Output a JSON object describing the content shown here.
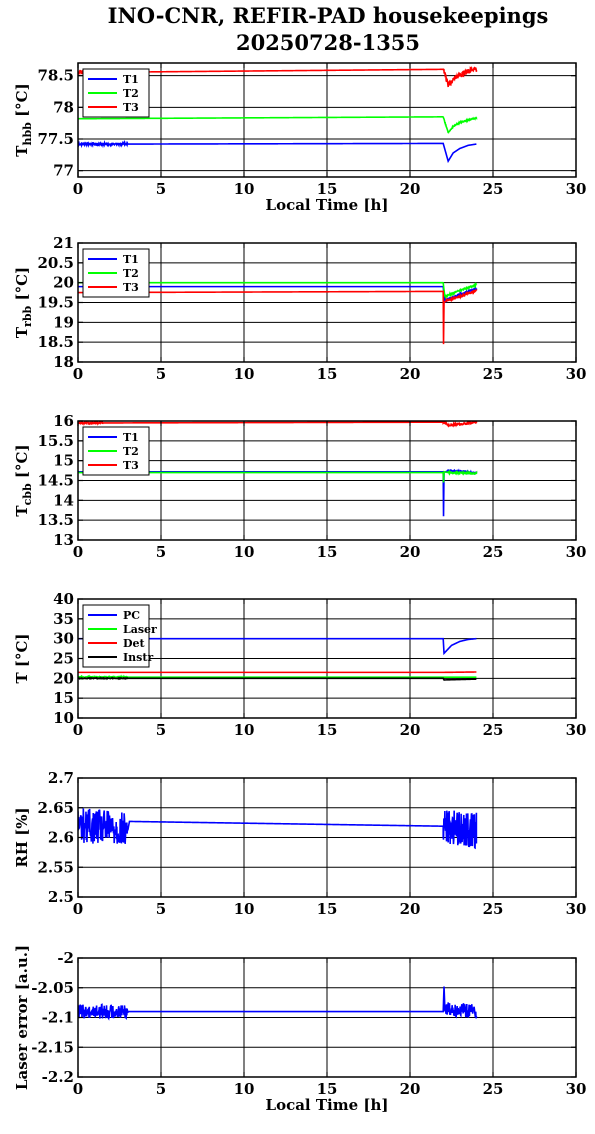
{
  "title_line1": "INO-CNR, REFIR-PAD housekeepings",
  "title_line2": "20250728-1355",
  "colors": {
    "blue": "#0000ff",
    "green": "#00ff00",
    "red": "#ff0000",
    "black": "#000000"
  },
  "chart_data": [
    {
      "type": "line",
      "ylabel_main": "T",
      "ylabel_sub": "hbb",
      "ylabel_unit": "[°C]",
      "xlabel": "Local Time [h]",
      "xlim": [
        0,
        30
      ],
      "ylim": [
        76.9,
        78.7
      ],
      "xticks": [
        0,
        5,
        10,
        15,
        20,
        25,
        30
      ],
      "yticks": [
        77,
        77.5,
        78,
        78.5
      ],
      "ytick_labels": [
        "77",
        "77.5",
        "78",
        "78.5"
      ],
      "grid": true,
      "legend": "top-left",
      "series": [
        {
          "name": "T1",
          "color": "blue",
          "x": [
            0,
            3,
            22,
            22.3,
            22.6,
            23,
            23.5,
            24
          ],
          "y": [
            77.42,
            77.42,
            77.43,
            77.15,
            77.28,
            77.35,
            77.4,
            77.42
          ],
          "noise": 0.02,
          "noise_ranges": [
            [
              0,
              3
            ]
          ]
        },
        {
          "name": "T2",
          "color": "green",
          "x": [
            0,
            22,
            22.3,
            22.6,
            23,
            23.5,
            24
          ],
          "y": [
            77.82,
            77.85,
            77.6,
            77.7,
            77.76,
            77.8,
            77.83
          ],
          "noise": 0.01,
          "noise_ranges": [
            [
              22,
              24
            ]
          ]
        },
        {
          "name": "T3",
          "color": "red",
          "x": [
            0,
            22,
            22.3,
            22.6,
            23,
            23.5,
            24
          ],
          "y": [
            78.55,
            78.6,
            78.35,
            78.45,
            78.5,
            78.57,
            78.6
          ],
          "noise": 0.04,
          "noise_ranges": [
            [
              22,
              24
            ],
            [
              0,
              0.3
            ]
          ]
        }
      ]
    },
    {
      "type": "line",
      "ylabel_main": "T",
      "ylabel_sub": "rbb",
      "ylabel_unit": "[°C]",
      "xlabel": "",
      "xlim": [
        0,
        30
      ],
      "ylim": [
        18,
        21
      ],
      "xticks": [
        0,
        5,
        10,
        15,
        20,
        25,
        30
      ],
      "yticks": [
        18,
        18.5,
        19,
        19.5,
        20,
        20.5,
        21
      ],
      "ytick_labels": [
        "18",
        "18.5",
        "19",
        "19.5",
        "20",
        "20.5",
        "21"
      ],
      "grid": true,
      "legend": "top-left",
      "series": [
        {
          "name": "T1",
          "color": "blue",
          "x": [
            0,
            22,
            22.1,
            23,
            24
          ],
          "y": [
            19.9,
            19.9,
            19.55,
            19.7,
            19.85
          ],
          "noise": 0.02,
          "noise_ranges": [
            [
              22,
              24
            ]
          ]
        },
        {
          "name": "T2",
          "color": "green",
          "x": [
            0,
            22,
            22.1,
            23,
            24
          ],
          "y": [
            20.0,
            20.0,
            19.65,
            19.8,
            19.95
          ],
          "noise": 0.02,
          "noise_ranges": [
            [
              22,
              24
            ]
          ]
        },
        {
          "name": "T3",
          "color": "red",
          "x": [
            0,
            22,
            22.02,
            22.05,
            22.2,
            23,
            24
          ],
          "y": [
            19.75,
            19.78,
            18.45,
            19.5,
            19.55,
            19.65,
            19.8
          ],
          "noise": 0.02,
          "noise_ranges": [
            [
              22.2,
              24
            ]
          ]
        }
      ]
    },
    {
      "type": "line",
      "ylabel_main": "T",
      "ylabel_sub": "cbb",
      "ylabel_unit": "[°C]",
      "xlabel": "",
      "xlim": [
        0,
        30
      ],
      "ylim": [
        13,
        16
      ],
      "xticks": [
        0,
        5,
        10,
        15,
        20,
        25,
        30
      ],
      "yticks": [
        13,
        13.5,
        14,
        14.5,
        15,
        15.5,
        16
      ],
      "ytick_labels": [
        "13",
        "13.5",
        "14",
        "14.5",
        "15",
        "15.5",
        "16"
      ],
      "grid": true,
      "legend": "top-left",
      "series": [
        {
          "name": "T1",
          "color": "blue",
          "x": [
            0,
            12,
            22,
            22.02,
            22.05,
            22.3,
            24
          ],
          "y": [
            14.72,
            14.72,
            14.72,
            13.6,
            14.7,
            14.75,
            14.7
          ],
          "noise": 0.02,
          "noise_ranges": [
            [
              22.3,
              24
            ]
          ]
        },
        {
          "name": "T2",
          "color": "green",
          "x": [
            0,
            22,
            22.02,
            22.05,
            22.3,
            24
          ],
          "y": [
            14.7,
            14.7,
            14.45,
            14.72,
            14.7,
            14.68
          ],
          "noise": 0.02,
          "noise_ranges": [
            [
              22.3,
              24
            ]
          ]
        },
        {
          "name": "T3",
          "color": "red",
          "x": [
            0,
            22,
            22.3,
            23,
            24
          ],
          "y": [
            15.95,
            15.97,
            15.9,
            15.92,
            15.97
          ],
          "noise": 0.025,
          "noise_ranges": [
            [
              0,
              1.5
            ],
            [
              22,
              24
            ]
          ]
        }
      ]
    },
    {
      "type": "line",
      "ylabel_main": "T",
      "ylabel_sub": "",
      "ylabel_unit": "[°C]",
      "xlabel": "",
      "xlim": [
        0,
        30
      ],
      "ylim": [
        10,
        40
      ],
      "xticks": [
        0,
        5,
        10,
        15,
        20,
        25,
        30
      ],
      "yticks": [
        10,
        15,
        20,
        25,
        30,
        35,
        40
      ],
      "ytick_labels": [
        "10",
        "15",
        "20",
        "25",
        "30",
        "35",
        "40"
      ],
      "grid": true,
      "legend": "top-left",
      "series": [
        {
          "name": "PC",
          "color": "blue",
          "x": [
            0,
            22,
            22.05,
            22.5,
            23,
            23.5,
            24
          ],
          "y": [
            30,
            30,
            26.3,
            28.3,
            29.3,
            29.8,
            30
          ],
          "noise": 0,
          "noise_ranges": []
        },
        {
          "name": "Laser",
          "color": "green",
          "x": [
            0,
            24
          ],
          "y": [
            20.3,
            20.3
          ],
          "noise": 0.15,
          "noise_ranges": [
            [
              0,
              3
            ]
          ]
        },
        {
          "name": "Det",
          "color": "red",
          "x": [
            0,
            22,
            24
          ],
          "y": [
            21.5,
            21.5,
            21.6
          ],
          "noise": 0,
          "noise_ranges": []
        },
        {
          "name": "Instr",
          "color": "black",
          "x": [
            0,
            22,
            22.05,
            24
          ],
          "y": [
            20,
            20,
            19.6,
            19.8
          ],
          "noise": 0.1,
          "noise_ranges": [
            [
              0,
              3
            ]
          ]
        }
      ]
    },
    {
      "type": "line",
      "ylabel_main": "RH [%]",
      "ylabel_sub": "",
      "ylabel_unit": "",
      "xlabel": "",
      "xlim": [
        0,
        30
      ],
      "ylim": [
        2.5,
        2.7
      ],
      "xticks": [
        0,
        5,
        10,
        15,
        20,
        25,
        30
      ],
      "yticks": [
        2.5,
        2.55,
        2.6,
        2.65,
        2.7
      ],
      "ytick_labels": [
        "2.5",
        "2.55",
        "2.6",
        "2.65",
        "2.7"
      ],
      "grid": true,
      "legend": "none",
      "series": [
        {
          "name": "",
          "color": "blue",
          "x": [
            0,
            3,
            3.1,
            22,
            24
          ],
          "y": [
            2.622,
            2.612,
            2.627,
            2.619,
            2.612
          ],
          "noise": 0.03,
          "noise_ranges": [
            [
              0,
              3
            ],
            [
              22,
              24
            ]
          ]
        }
      ]
    },
    {
      "type": "line",
      "ylabel_main": "Laser error [a.u.]",
      "ylabel_sub": "",
      "ylabel_unit": "",
      "xlabel": "Local Time [h]",
      "xlim": [
        0,
        30
      ],
      "ylim": [
        -2.2,
        -2
      ],
      "xticks": [
        0,
        5,
        10,
        15,
        20,
        25,
        30
      ],
      "yticks": [
        -2.2,
        -2.15,
        -2.1,
        -2.05,
        -2
      ],
      "ytick_labels": [
        "-2.2",
        "-2.15",
        "-2.1",
        "-2.05",
        "-2"
      ],
      "grid": true,
      "legend": "none",
      "series": [
        {
          "name": "",
          "color": "blue",
          "x": [
            0,
            3,
            22,
            22.05,
            22.1,
            24
          ],
          "y": [
            -2.09,
            -2.09,
            -2.09,
            -2.048,
            -2.085,
            -2.09
          ],
          "noise": 0.012,
          "noise_ranges": [
            [
              0,
              3
            ],
            [
              22.1,
              24
            ]
          ]
        }
      ]
    }
  ]
}
